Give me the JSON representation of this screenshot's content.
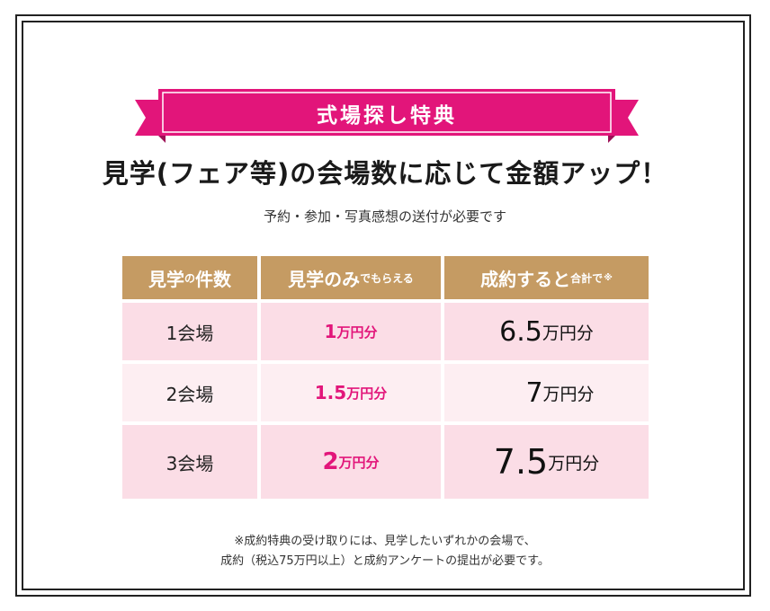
{
  "banner": {
    "label": "式場探し特典"
  },
  "headline": "見学(フェア等)の会場数に応じて金額アップ！",
  "subline": "予約・参加・写真感想の送付が必要です",
  "table": {
    "headers": {
      "venues": {
        "main": "見学",
        "small": "の",
        "rest": "件数"
      },
      "visit_only": {
        "main": "見学のみ",
        "small": "でもらえる"
      },
      "with_contract": {
        "main": "成約すると",
        "small": "合計で",
        "mark": "※"
      }
    },
    "unit": "万円分",
    "rows": [
      {
        "venues": "1会場",
        "visit_only": "1",
        "with_contract": "6.5"
      },
      {
        "venues": "2会場",
        "visit_only": "1.5",
        "with_contract": "7"
      },
      {
        "venues": "3会場",
        "visit_only": "2",
        "with_contract": "7.5"
      }
    ]
  },
  "note": {
    "line1": "※成約特典の受け取りには、見学したいずれかの会場で、",
    "line2": "成約（税込75万円以上）と成約アンケートの提出が必要です。"
  },
  "colors": {
    "ribbon": "#e2157a",
    "header": "#c59b63",
    "accent": "#e2157a"
  }
}
